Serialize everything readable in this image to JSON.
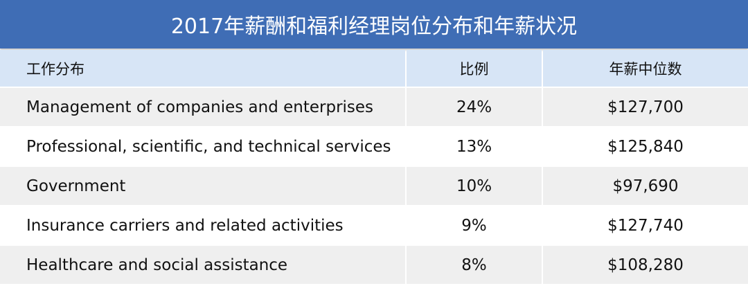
{
  "title": "2017年薪酬和福利经理岗位分布和年薪状况",
  "table": {
    "header": [
      "工作分布",
      "比例",
      "年薪中位数"
    ],
    "rows": [
      [
        "Management of companies and enterprises",
        "24%",
        "$127,700"
      ],
      [
        "Professional, scientific, and technical services",
        "13%",
        "$125,840"
      ],
      [
        "Government",
        "10%",
        "$97,690"
      ],
      [
        "Insurance carriers and related activities",
        "9%",
        "$127,740"
      ],
      [
        "Healthcare and social assistance",
        "8%",
        "$108,280"
      ]
    ]
  }
}
